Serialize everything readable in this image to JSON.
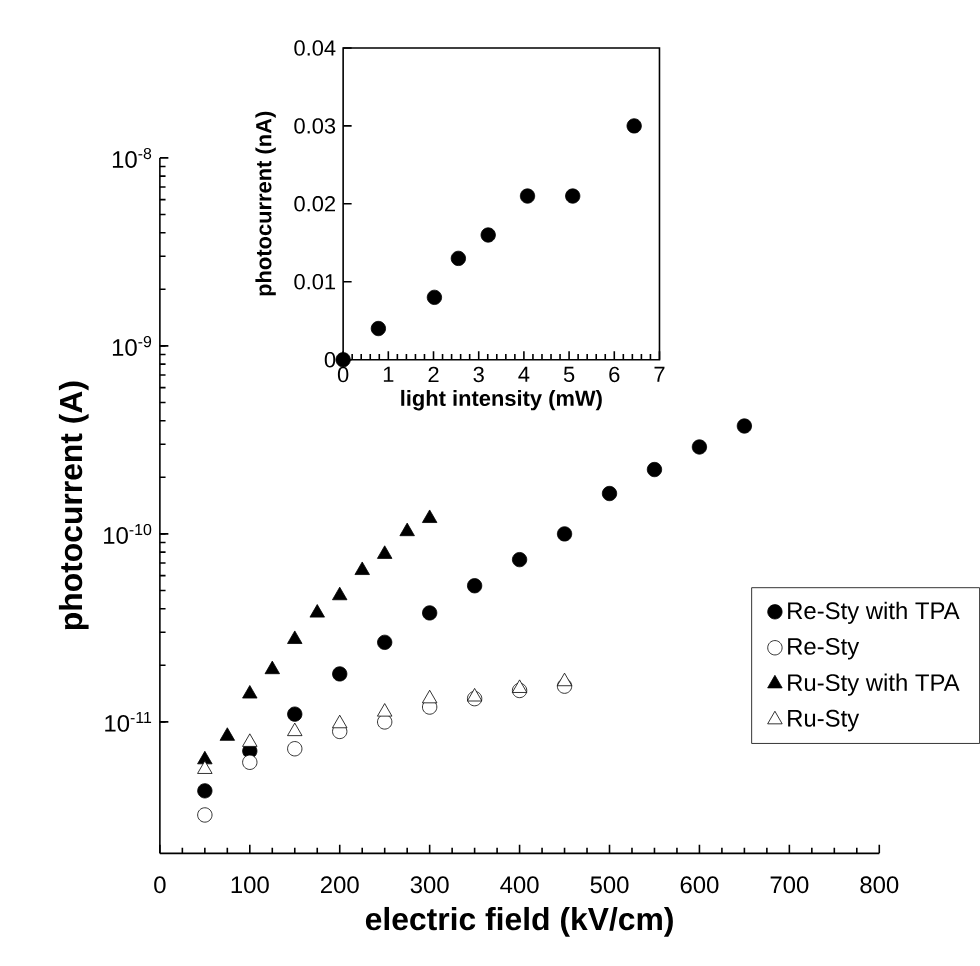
{
  "chart_data": [
    {
      "type": "scatter",
      "xlabel": "electric field (kV/cm)",
      "ylabel": "photocurrent (A)",
      "log": "y",
      "xlim": [
        0,
        800
      ],
      "xticks": [
        0,
        100,
        200,
        300,
        400,
        500,
        600,
        700,
        800
      ],
      "ylim": [
        2e-12,
        1e-08
      ],
      "yticks": [
        {
          "value": 1e-11,
          "label": "10$^{-11}$"
        },
        {
          "value": 1e-10,
          "label": "10$^{-10}$"
        },
        {
          "value": 1e-09,
          "label": "10$^{-9}$"
        },
        {
          "value": 1e-08,
          "label": "10$^{-8}$"
        }
      ],
      "legend": "right",
      "grid": false,
      "series": [
        {
          "name": "Re-Sty with TPA",
          "color": "#000000",
          "marker": "circle",
          "x": [
            50,
            100,
            150,
            200,
            250,
            300,
            350,
            400,
            450,
            500,
            550,
            600,
            650
          ],
          "values": [
            4.3e-12,
            7e-12,
            1.1e-11,
            1.8e-11,
            2.65e-11,
            3.8e-11,
            5.3e-11,
            7.3e-11,
            1e-10,
            1.64e-10,
            2.2e-10,
            2.9e-10,
            3.75e-10
          ]
        },
        {
          "name": "Re-Sty",
          "color": "#000000",
          "marker": "circle-open",
          "x": [
            50,
            100,
            150,
            200,
            250,
            300,
            350,
            400,
            450
          ],
          "values": [
            3.2e-12,
            6.1e-12,
            7.2e-12,
            8.9e-12,
            1e-11,
            1.2e-11,
            1.33e-11,
            1.47e-11,
            1.55e-11
          ]
        },
        {
          "name": "Ru-Sty with TPA",
          "color": "#000000",
          "marker": "triangle",
          "x": [
            50,
            75,
            100,
            125,
            150,
            175,
            200,
            225,
            250,
            275,
            300
          ],
          "values": [
            6.3e-12,
            8.4e-12,
            1.41e-11,
            1.9e-11,
            2.75e-11,
            3.8e-11,
            4.7e-11,
            6.4e-11,
            7.8e-11,
            1.03e-10,
            1.21e-10
          ]
        },
        {
          "name": "Ru-Sty",
          "color": "#000000",
          "marker": "triangle-open",
          "x": [
            50,
            100,
            150,
            200,
            250,
            300,
            350,
            400,
            450
          ],
          "values": [
            5.6e-12,
            7.8e-12,
            8.9e-12,
            9.8e-12,
            1.13e-11,
            1.33e-11,
            1.36e-11,
            1.51e-11,
            1.64e-11
          ]
        }
      ]
    },
    {
      "type": "scatter",
      "xlabel": "light intensity  (mW)",
      "ylabel": "photocurrent  (nA)",
      "xlim": [
        0,
        7
      ],
      "xticks": [
        0,
        1,
        2,
        3,
        4,
        5,
        6,
        7
      ],
      "ylim": [
        0,
        0.04
      ],
      "yticks": [
        0,
        0.01,
        0.02,
        0.03,
        0.04
      ],
      "grid": false,
      "marker": "circle",
      "series": [
        {
          "color": "#000000",
          "x": [
            0,
            0.78,
            2.02,
            2.55,
            3.21,
            4.08,
            5.08,
            6.44
          ],
          "values": [
            0,
            0.004,
            0.008,
            0.013,
            0.016,
            0.021,
            0.021,
            0.03
          ]
        }
      ]
    }
  ]
}
